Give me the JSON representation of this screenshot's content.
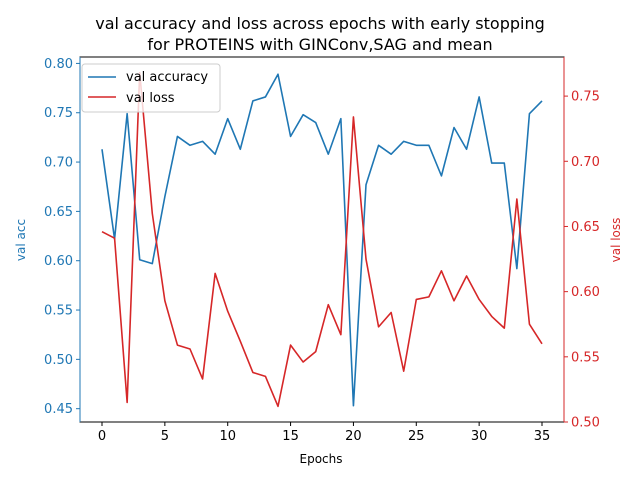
{
  "chart_data": {
    "type": "line",
    "title_line1": "val accuracy and loss across epochs with early stopping",
    "title_line2": "for PROTEINS with GINConv,SAG and mean",
    "xlabel": "Epochs",
    "ylabel_left": "val acc",
    "ylabel_right": "val loss",
    "xlim": [
      -1.75,
      36.75
    ],
    "ylim_left": [
      0.4365,
      0.8065
    ],
    "ylim_right": [
      0.5,
      0.78
    ],
    "x_ticks": [
      0,
      5,
      10,
      15,
      20,
      25,
      30,
      35
    ],
    "y_ticks_left": [
      0.45,
      0.5,
      0.55,
      0.6,
      0.65,
      0.7,
      0.75,
      0.8
    ],
    "y_ticks_right": [
      0.5,
      0.55,
      0.6,
      0.65,
      0.7,
      0.75
    ],
    "legend_position": "upper-left",
    "colors": {
      "acc": "#1f77b4",
      "loss": "#d62728",
      "axis": "#000000"
    },
    "x": [
      0,
      1,
      2,
      3,
      4,
      5,
      6,
      7,
      8,
      9,
      10,
      11,
      12,
      13,
      14,
      15,
      16,
      17,
      18,
      19,
      20,
      21,
      22,
      23,
      24,
      25,
      26,
      27,
      28,
      29,
      30,
      31,
      32,
      33,
      34,
      35
    ],
    "series": [
      {
        "name": "val accuracy",
        "axis": "left",
        "values": [
          0.713,
          0.622,
          0.749,
          0.601,
          0.597,
          0.665,
          0.726,
          0.717,
          0.721,
          0.708,
          0.744,
          0.713,
          0.762,
          0.766,
          0.789,
          0.726,
          0.748,
          0.74,
          0.708,
          0.744,
          0.453,
          0.677,
          0.717,
          0.708,
          0.721,
          0.717,
          0.717,
          0.686,
          0.735,
          0.713,
          0.766,
          0.699,
          0.699,
          0.592,
          0.749,
          0.762
        ]
      },
      {
        "name": "val loss",
        "axis": "right",
        "values": [
          0.646,
          0.641,
          0.515,
          0.768,
          0.66,
          0.593,
          0.559,
          0.556,
          0.533,
          0.614,
          0.585,
          0.562,
          0.538,
          0.535,
          0.512,
          0.559,
          0.546,
          0.554,
          0.59,
          0.567,
          0.734,
          0.625,
          0.573,
          0.584,
          0.539,
          0.594,
          0.596,
          0.616,
          0.593,
          0.612,
          0.594,
          0.581,
          0.572,
          0.671,
          0.575,
          0.56
        ]
      }
    ]
  }
}
